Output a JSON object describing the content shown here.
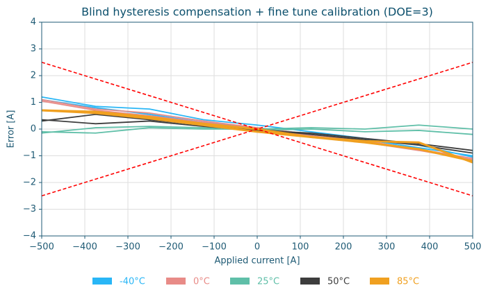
{
  "chart_data": {
    "type": "line",
    "title": "Blind hysteresis compensation + fine tune calibration (DOE=3)",
    "x_label": "Applied current [A]",
    "y_label": "Error [A]",
    "x": [
      -500,
      -375,
      -250,
      -125,
      0,
      125,
      250,
      375,
      500
    ],
    "xlim": [
      -500,
      500
    ],
    "ylim": [
      -4,
      4
    ],
    "xticks": [
      {
        "value": -500,
        "label": "−500"
      },
      {
        "value": -400,
        "label": "−400"
      },
      {
        "value": -300,
        "label": "−300"
      },
      {
        "value": -200,
        "label": "−200"
      },
      {
        "value": -100,
        "label": "−100"
      },
      0,
      100,
      200,
      300,
      400,
      500
    ],
    "yticks": [
      {
        "value": -4,
        "label": "−4"
      },
      {
        "value": -3,
        "label": "−3"
      },
      {
        "value": -2,
        "label": "−2"
      },
      {
        "value": -1,
        "label": "−1"
      },
      0,
      1,
      2,
      3,
      4
    ],
    "grid": true,
    "legend": "bottom",
    "series": [
      {
        "name": "-40°C",
        "color": "#29b6f6",
        "sweeps": [
          [
            1.2,
            0.85,
            0.75,
            0.35,
            0.15,
            -0.1,
            -0.35,
            -0.6,
            -1.05
          ],
          [
            1.1,
            0.8,
            0.55,
            0.25,
            0.05,
            -0.2,
            -0.4,
            -0.7,
            -1.0
          ]
        ]
      },
      {
        "name": "0°C",
        "color": "#e88b87",
        "sweeps": [
          [
            1.1,
            0.75,
            0.6,
            0.3,
            0.05,
            -0.2,
            -0.45,
            -0.75,
            -1.1
          ],
          [
            1.05,
            0.7,
            0.5,
            0.25,
            0.0,
            -0.25,
            -0.5,
            -0.8,
            -1.15
          ]
        ]
      },
      {
        "name": "25°C",
        "color": "#5fbfa8",
        "sweeps": [
          [
            -0.1,
            -0.15,
            0.05,
            0.0,
            0.0,
            0.05,
            0.0,
            0.15,
            0.0
          ],
          [
            -0.15,
            0.05,
            0.1,
            0.05,
            -0.05,
            0.0,
            -0.1,
            -0.05,
            -0.2
          ]
        ]
      },
      {
        "name": "50°C",
        "color": "#3d3d3d",
        "sweeps": [
          [
            0.35,
            0.2,
            0.3,
            0.1,
            -0.05,
            -0.15,
            -0.35,
            -0.55,
            -0.8
          ],
          [
            0.3,
            0.55,
            0.35,
            0.15,
            0.0,
            -0.2,
            -0.4,
            -0.6,
            -0.9
          ]
        ]
      },
      {
        "name": "85°C",
        "color": "#f0a020",
        "sweeps": [
          [
            0.7,
            0.65,
            0.45,
            0.2,
            0.0,
            -0.3,
            -0.45,
            -0.5,
            -1.25
          ],
          [
            0.7,
            0.6,
            0.4,
            0.15,
            -0.1,
            -0.3,
            -0.5,
            -0.75,
            -1.2
          ]
        ]
      }
    ],
    "reference_lines": [
      {
        "color": "#ff0000",
        "x": [
          -500,
          500
        ],
        "values": [
          2.5,
          -2.5
        ]
      },
      {
        "color": "#ff0000",
        "x": [
          -500,
          500
        ],
        "values": [
          -2.5,
          2.5
        ]
      }
    ]
  }
}
